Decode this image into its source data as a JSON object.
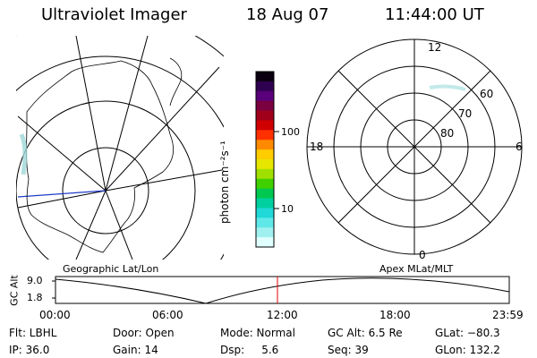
{
  "header": {
    "title": "Ultraviolet Imager",
    "date": "18 Aug 07",
    "time": "11:44:00 UT"
  },
  "colorbar": {
    "unit_label": "photon cm⁻²s⁻¹",
    "ticks": [
      "100",
      "10"
    ],
    "colors": [
      "#0a0010",
      "#300050",
      "#5a007a",
      "#7a0040",
      "#a0001a",
      "#d00000",
      "#ff3000",
      "#ff8a00",
      "#ffcc00",
      "#e6e600",
      "#a0e000",
      "#40d000",
      "#00c850",
      "#00d0a0",
      "#20d8d8",
      "#60e8e8",
      "#a0f0f0",
      "#e0ffff"
    ]
  },
  "polar_plot": {
    "labels": {
      "top": "12",
      "bottom": "0",
      "left": "18",
      "right": "6",
      "r60": "60",
      "r70": "70",
      "r80": "80"
    }
  },
  "timeline": {
    "left_label": "Geographic Lat/Lon",
    "right_label": "Apex MLat/MLT",
    "axis_label": "GC Alt",
    "y_ticks": [
      "9.0",
      "1.8"
    ],
    "x_ticks": [
      "00:00",
      "06:00",
      "12:00",
      "18:00",
      "23:59"
    ],
    "marker_color": "#e00000"
  },
  "status": {
    "flt": "Flt: LBHL",
    "ip": "IP: 36.0",
    "door": "Door: Open",
    "gain": "Gain: 14",
    "mode": "Mode: Normal",
    "dsp": "Dsp:     5.6",
    "gcalt": "GC Alt: 6.5 Re",
    "seq": "Seq: 39",
    "glat": "GLat: −80.3",
    "glon": "GLon: 132.2"
  }
}
